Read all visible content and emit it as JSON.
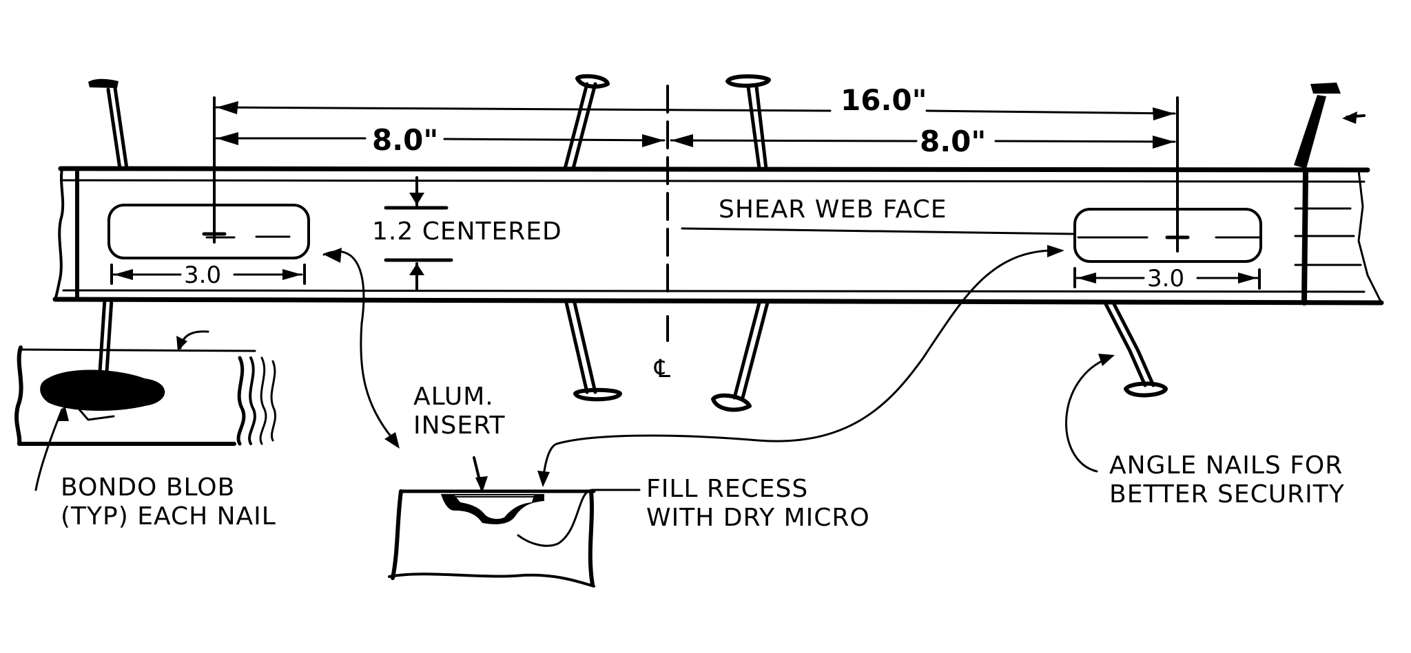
{
  "dimensions": {
    "overall": "16.0\"",
    "left_half": "8.0\"",
    "right_half": "8.0\"",
    "insert_left": "3.0",
    "insert_right": "3.0",
    "centered": "1.2 CENTERED"
  },
  "labels": {
    "face": "SHEAR WEB FACE",
    "alum_line1": "ALUM.",
    "alum_line2": "INSERT",
    "bondo_line1": "BONDO BLOB",
    "bondo_line2": "(TYP) EACH NAIL",
    "fill_line1": "FILL RECESS",
    "fill_line2": "WITH DRY MICRO",
    "angle_line1": "ANGLE NAILS FOR",
    "angle_line2": "BETTER SECURITY"
  }
}
